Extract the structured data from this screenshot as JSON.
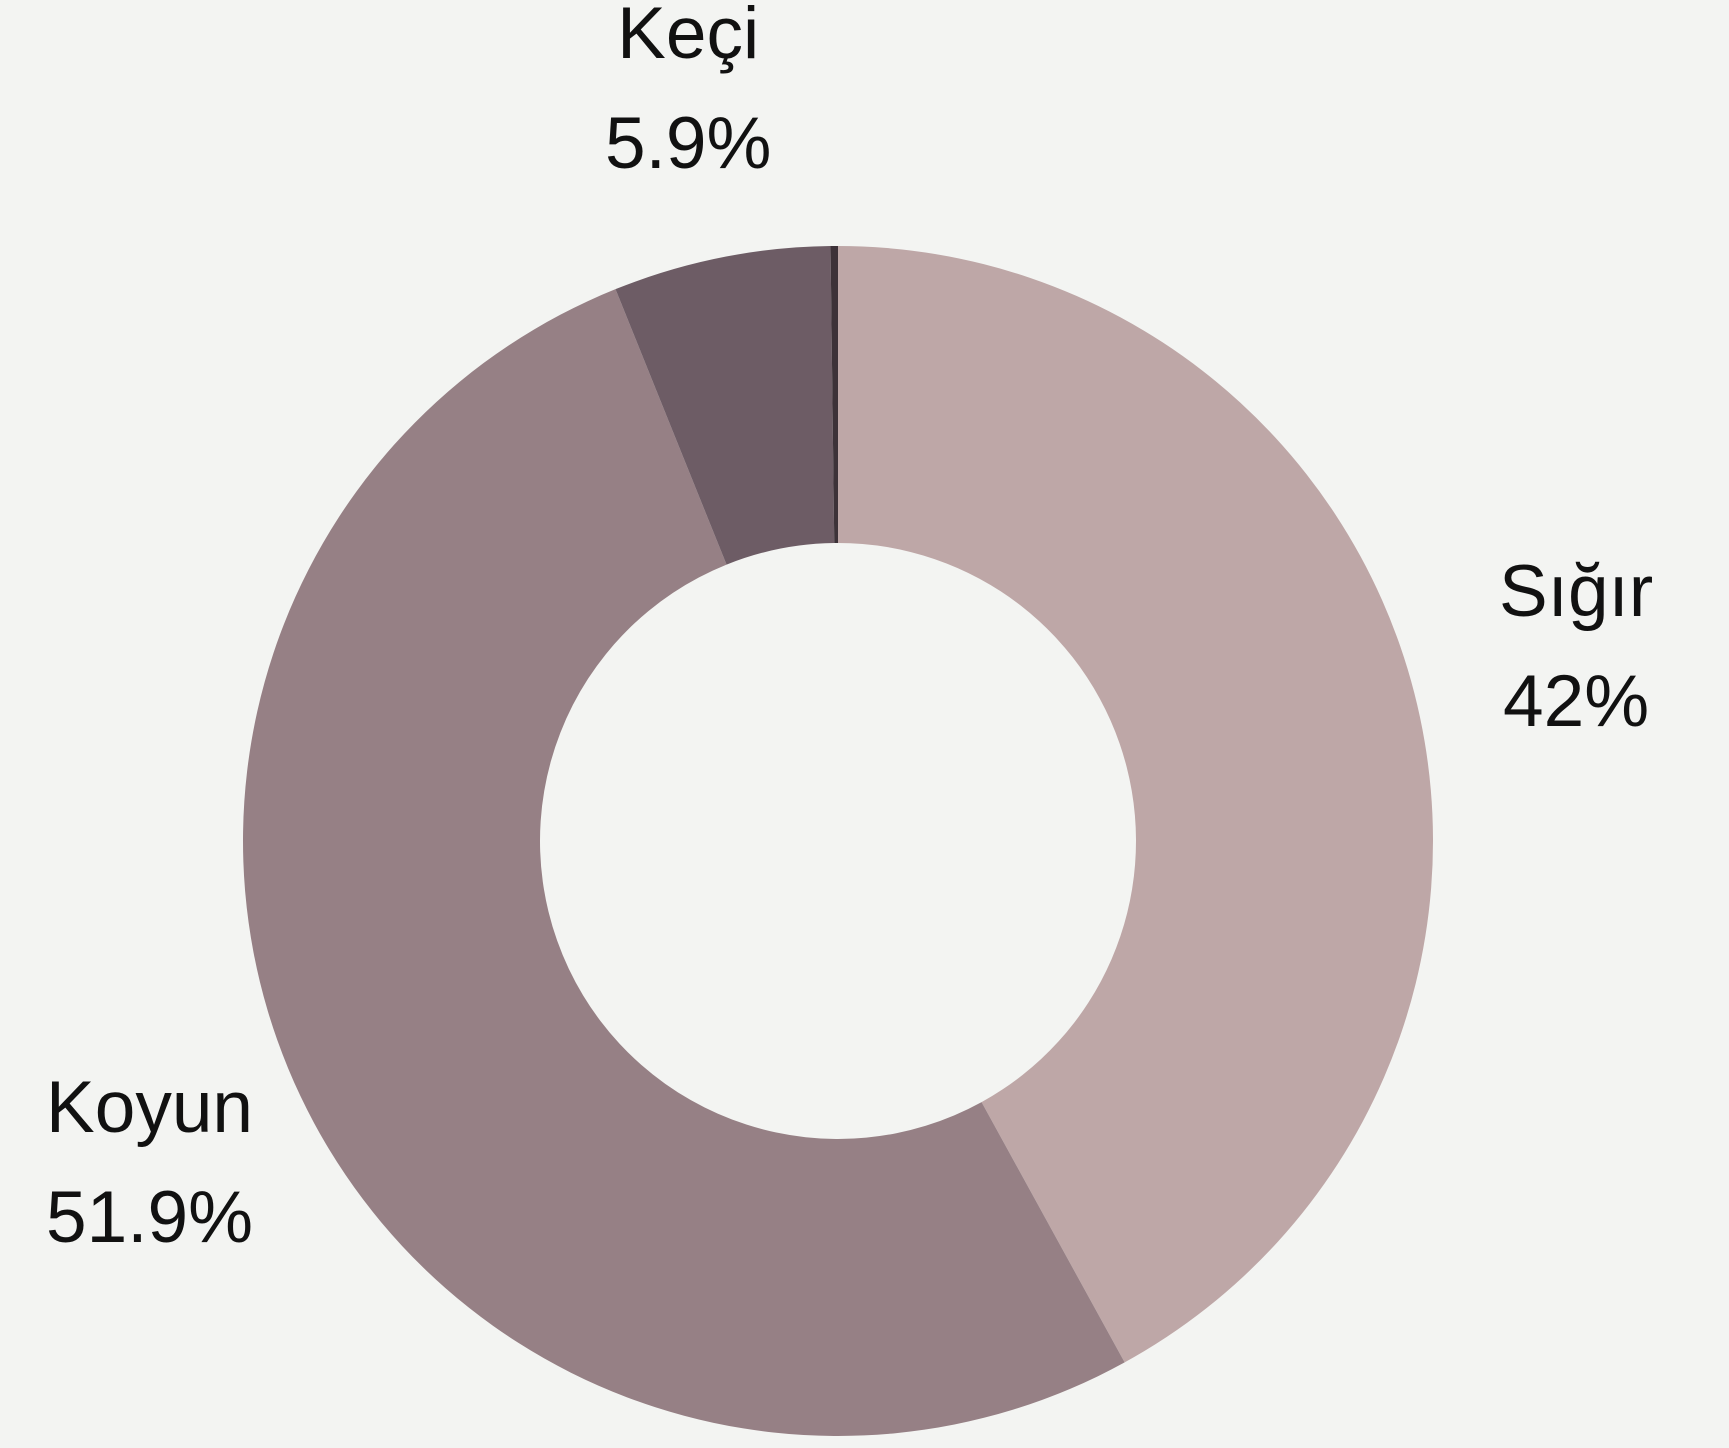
{
  "chart_data": {
    "type": "donut",
    "categories": [
      "Sığır",
      "Koyun",
      "Keçi",
      null
    ],
    "values": [
      42,
      51.9,
      5.9,
      0.2
    ],
    "value_labels": [
      "42%",
      "51.9%",
      "5.9%",
      null
    ],
    "colors": [
      "#bea7a7",
      "#968085",
      "#6d5c65",
      "#3d3238"
    ]
  }
}
